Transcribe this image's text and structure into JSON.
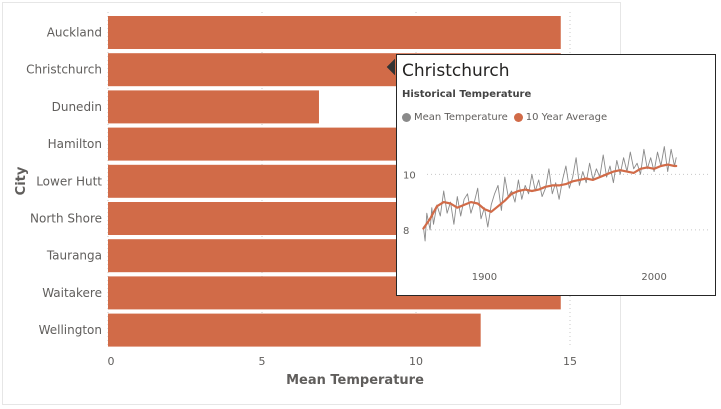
{
  "colors": {
    "bar": "#d16b48",
    "line_avg": "#d16b48",
    "line_mean": "#8a8a8a",
    "axis_text": "#605e5c",
    "title_text": "#252423"
  },
  "chart_data": [
    {
      "type": "bar",
      "orientation": "horizontal",
      "categories": [
        "Auckland",
        "Christchurch",
        "Dunedin",
        "Hamilton",
        "Lower Hutt",
        "North Shore",
        "Tauranga",
        "Waitakere",
        "Wellington"
      ],
      "values": [
        14.7,
        14.7,
        6.85,
        14.7,
        14.7,
        14.7,
        14.7,
        14.7,
        12.1
      ],
      "xlabel": "Mean Temperature",
      "ylabel": "City",
      "xlim": [
        0,
        15.5
      ],
      "xticks": [
        0,
        5,
        10,
        15
      ],
      "gridlines": true
    },
    {
      "type": "line",
      "title": "Christchurch",
      "subtitle": "Historical Temperature",
      "xlim": [
        1852,
        2030
      ],
      "ylim": [
        7.6,
        11.2
      ],
      "xticks": [
        1900,
        2000
      ],
      "yticks": [
        8,
        10
      ],
      "series": [
        {
          "name": "Mean Temperature",
          "x": [
            1864,
            1865,
            1866,
            1867,
            1868,
            1869,
            1870,
            1872,
            1874,
            1876,
            1878,
            1880,
            1882,
            1884,
            1886,
            1888,
            1890,
            1892,
            1894,
            1896,
            1898,
            1900,
            1902,
            1904,
            1906,
            1908,
            1910,
            1912,
            1914,
            1916,
            1918,
            1920,
            1922,
            1924,
            1926,
            1928,
            1930,
            1932,
            1934,
            1936,
            1938,
            1940,
            1942,
            1944,
            1946,
            1948,
            1950,
            1952,
            1954,
            1956,
            1958,
            1960,
            1962,
            1964,
            1966,
            1968,
            1970,
            1972,
            1974,
            1976,
            1978,
            1980,
            1982,
            1984,
            1986,
            1988,
            1990,
            1992,
            1994,
            1996,
            1998,
            2000,
            2002,
            2004,
            2006,
            2008,
            2010,
            2012,
            2013
          ],
          "y": [
            8.1,
            7.6,
            8.6,
            8.3,
            8.0,
            8.8,
            8.2,
            8.9,
            8.5,
            9.4,
            8.6,
            9.0,
            8.2,
            9.2,
            8.5,
            9.1,
            9.3,
            8.6,
            9.0,
            9.5,
            8.4,
            8.8,
            8.1,
            8.9,
            9.3,
            9.6,
            8.7,
            9.9,
            9.2,
            9.4,
            9.0,
            9.8,
            9.1,
            9.6,
            9.3,
            10.0,
            9.4,
            9.8,
            9.2,
            9.5,
            10.2,
            9.3,
            9.7,
            9.1,
            9.8,
            10.3,
            9.5,
            9.9,
            10.6,
            9.6,
            10.1,
            9.7,
            10.4,
            9.8,
            10.2,
            9.9,
            10.7,
            9.9,
            10.3,
            9.7,
            10.5,
            10.0,
            10.6,
            10.1,
            10.8,
            10.2,
            10.4,
            10.0,
            10.9,
            10.2,
            10.6,
            10.1,
            10.8,
            10.3,
            11.0,
            10.1,
            10.9,
            10.3,
            10.6
          ]
        },
        {
          "name": "10 Year Average",
          "x": [
            1864,
            1868,
            1872,
            1876,
            1880,
            1884,
            1888,
            1892,
            1896,
            1900,
            1904,
            1908,
            1912,
            1916,
            1920,
            1924,
            1928,
            1932,
            1936,
            1940,
            1944,
            1948,
            1952,
            1956,
            1960,
            1964,
            1968,
            1972,
            1976,
            1980,
            1984,
            1988,
            1992,
            1996,
            2000,
            2004,
            2008,
            2012,
            2013
          ],
          "y": [
            8.05,
            8.4,
            8.85,
            9.0,
            8.95,
            8.8,
            8.9,
            9.0,
            8.95,
            8.75,
            8.65,
            8.85,
            9.05,
            9.3,
            9.4,
            9.45,
            9.4,
            9.45,
            9.55,
            9.6,
            9.6,
            9.65,
            9.75,
            9.8,
            9.85,
            9.8,
            9.9,
            10.0,
            10.1,
            10.15,
            10.1,
            10.05,
            10.2,
            10.25,
            10.2,
            10.3,
            10.35,
            10.3,
            10.3
          ]
        }
      ]
    }
  ]
}
